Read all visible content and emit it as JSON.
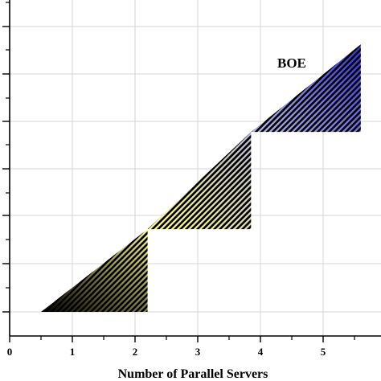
{
  "chart_data": {
    "type": "area",
    "xlabel": "Number of Parallel Servers",
    "ylabel": "",
    "xlim": [
      0,
      5.9
    ],
    "x_ticks": [
      "0",
      "1",
      "2",
      "3",
      "4",
      "5"
    ],
    "grid": true,
    "annotation": "BOE",
    "regions": [
      {
        "x": [
          0.5,
          2.2,
          2.2
        ],
        "y": [
          0,
          0,
          1.7
        ],
        "fill_colors": [
          "#000000",
          "#ffff80"
        ]
      },
      {
        "x": [
          2.2,
          3.85,
          3.85
        ],
        "y": [
          1.7,
          1.7,
          3.7
        ],
        "fill_colors": [
          "#ffff80",
          "#b8b8d8"
        ]
      },
      {
        "x": [
          3.85,
          5.6,
          5.6
        ],
        "y": [
          3.7,
          3.7,
          5.5
        ],
        "fill_colors": [
          "#b8b8e0",
          "#3030d8"
        ]
      }
    ],
    "diagonal": {
      "x": [
        0.5,
        5.6
      ],
      "y": [
        0,
        5.5
      ]
    }
  }
}
